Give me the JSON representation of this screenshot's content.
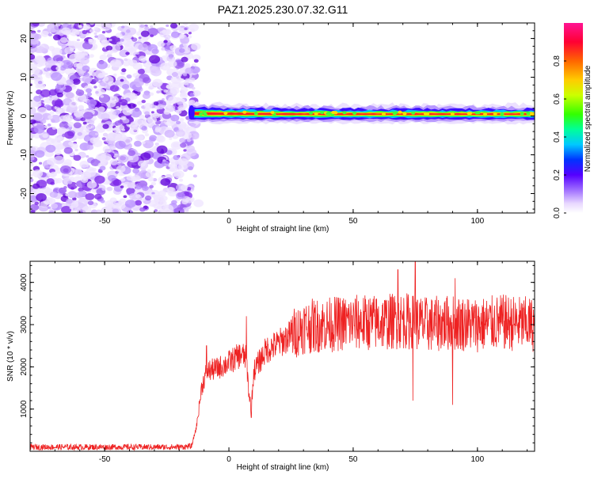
{
  "title": "PAZ1.2025.230.07.32.G11",
  "chart_data": [
    {
      "type": "heatmap",
      "xlabel": "Height of straight line (km)",
      "ylabel": "Frequency (Hz)",
      "xlim": [
        -80,
        123
      ],
      "ylim": [
        -25,
        24
      ],
      "xticks": [
        -50,
        0,
        50,
        100
      ],
      "yticks": [
        -20,
        -10,
        0,
        10,
        20
      ],
      "grid": false,
      "colorbar": {
        "label": "Normalized spectral amplitude",
        "range": [
          0,
          1
        ],
        "ticks": [
          0.0,
          0.2,
          0.4,
          0.6,
          0.8
        ],
        "colors": [
          "#ffffff",
          "#b9a2f0",
          "#7a18e8",
          "#4400ff",
          "#0033ff",
          "#00c8ff",
          "#00ff99",
          "#33ff00",
          "#ccff00",
          "#ffcc00",
          "#ff6600",
          "#ff0033",
          "#ff1493"
        ]
      },
      "regions": [
        {
          "name_hint": "noise",
          "x": [
            -80,
            -16
          ],
          "y": [
            -25,
            24
          ],
          "amplitude_range": [
            0.0,
            0.15
          ]
        },
        {
          "name_hint": "signal-band",
          "x": [
            -16,
            123
          ],
          "frequency_hz": 0.5,
          "width_hz": 1.8,
          "peak_amplitude": 0.95
        }
      ]
    },
    {
      "type": "line",
      "xlabel": "Height of straight line (km)",
      "ylabel": "SNR (10 * v/v)",
      "xlim": [
        -80,
        123
      ],
      "ylim": [
        0,
        4500
      ],
      "xticks": [
        -50,
        0,
        50,
        100
      ],
      "yticks": [
        1000,
        2000,
        3000,
        4000
      ],
      "grid": false,
      "series": [
        {
          "color": "#ee2222",
          "profile_x": [
            -80,
            -20,
            -15,
            -13,
            -11,
            -9,
            -5,
            0,
            5,
            7,
            8,
            9,
            10,
            15,
            20,
            25,
            30,
            40,
            50,
            60,
            70,
            80,
            90,
            100,
            110,
            123
          ],
          "profile_y": [
            100,
            100,
            120,
            600,
            1500,
            1900,
            1950,
            2100,
            2300,
            2200,
            1400,
            1000,
            1900,
            2400,
            2550,
            2750,
            2950,
            3000,
            3050,
            3050,
            3100,
            3000,
            3050,
            3000,
            3050,
            3000
          ],
          "spikes": [
            {
              "x": -9,
              "y": 2500
            },
            {
              "x": 7,
              "y": 3200
            },
            {
              "x": 9,
              "y": 800
            },
            {
              "x": 75,
              "y": 4500
            },
            {
              "x": 74,
              "y": 1200
            },
            {
              "x": 68,
              "y": 4300
            },
            {
              "x": 90,
              "y": 1100
            },
            {
              "x": 91,
              "y": 4100
            }
          ]
        }
      ]
    }
  ]
}
